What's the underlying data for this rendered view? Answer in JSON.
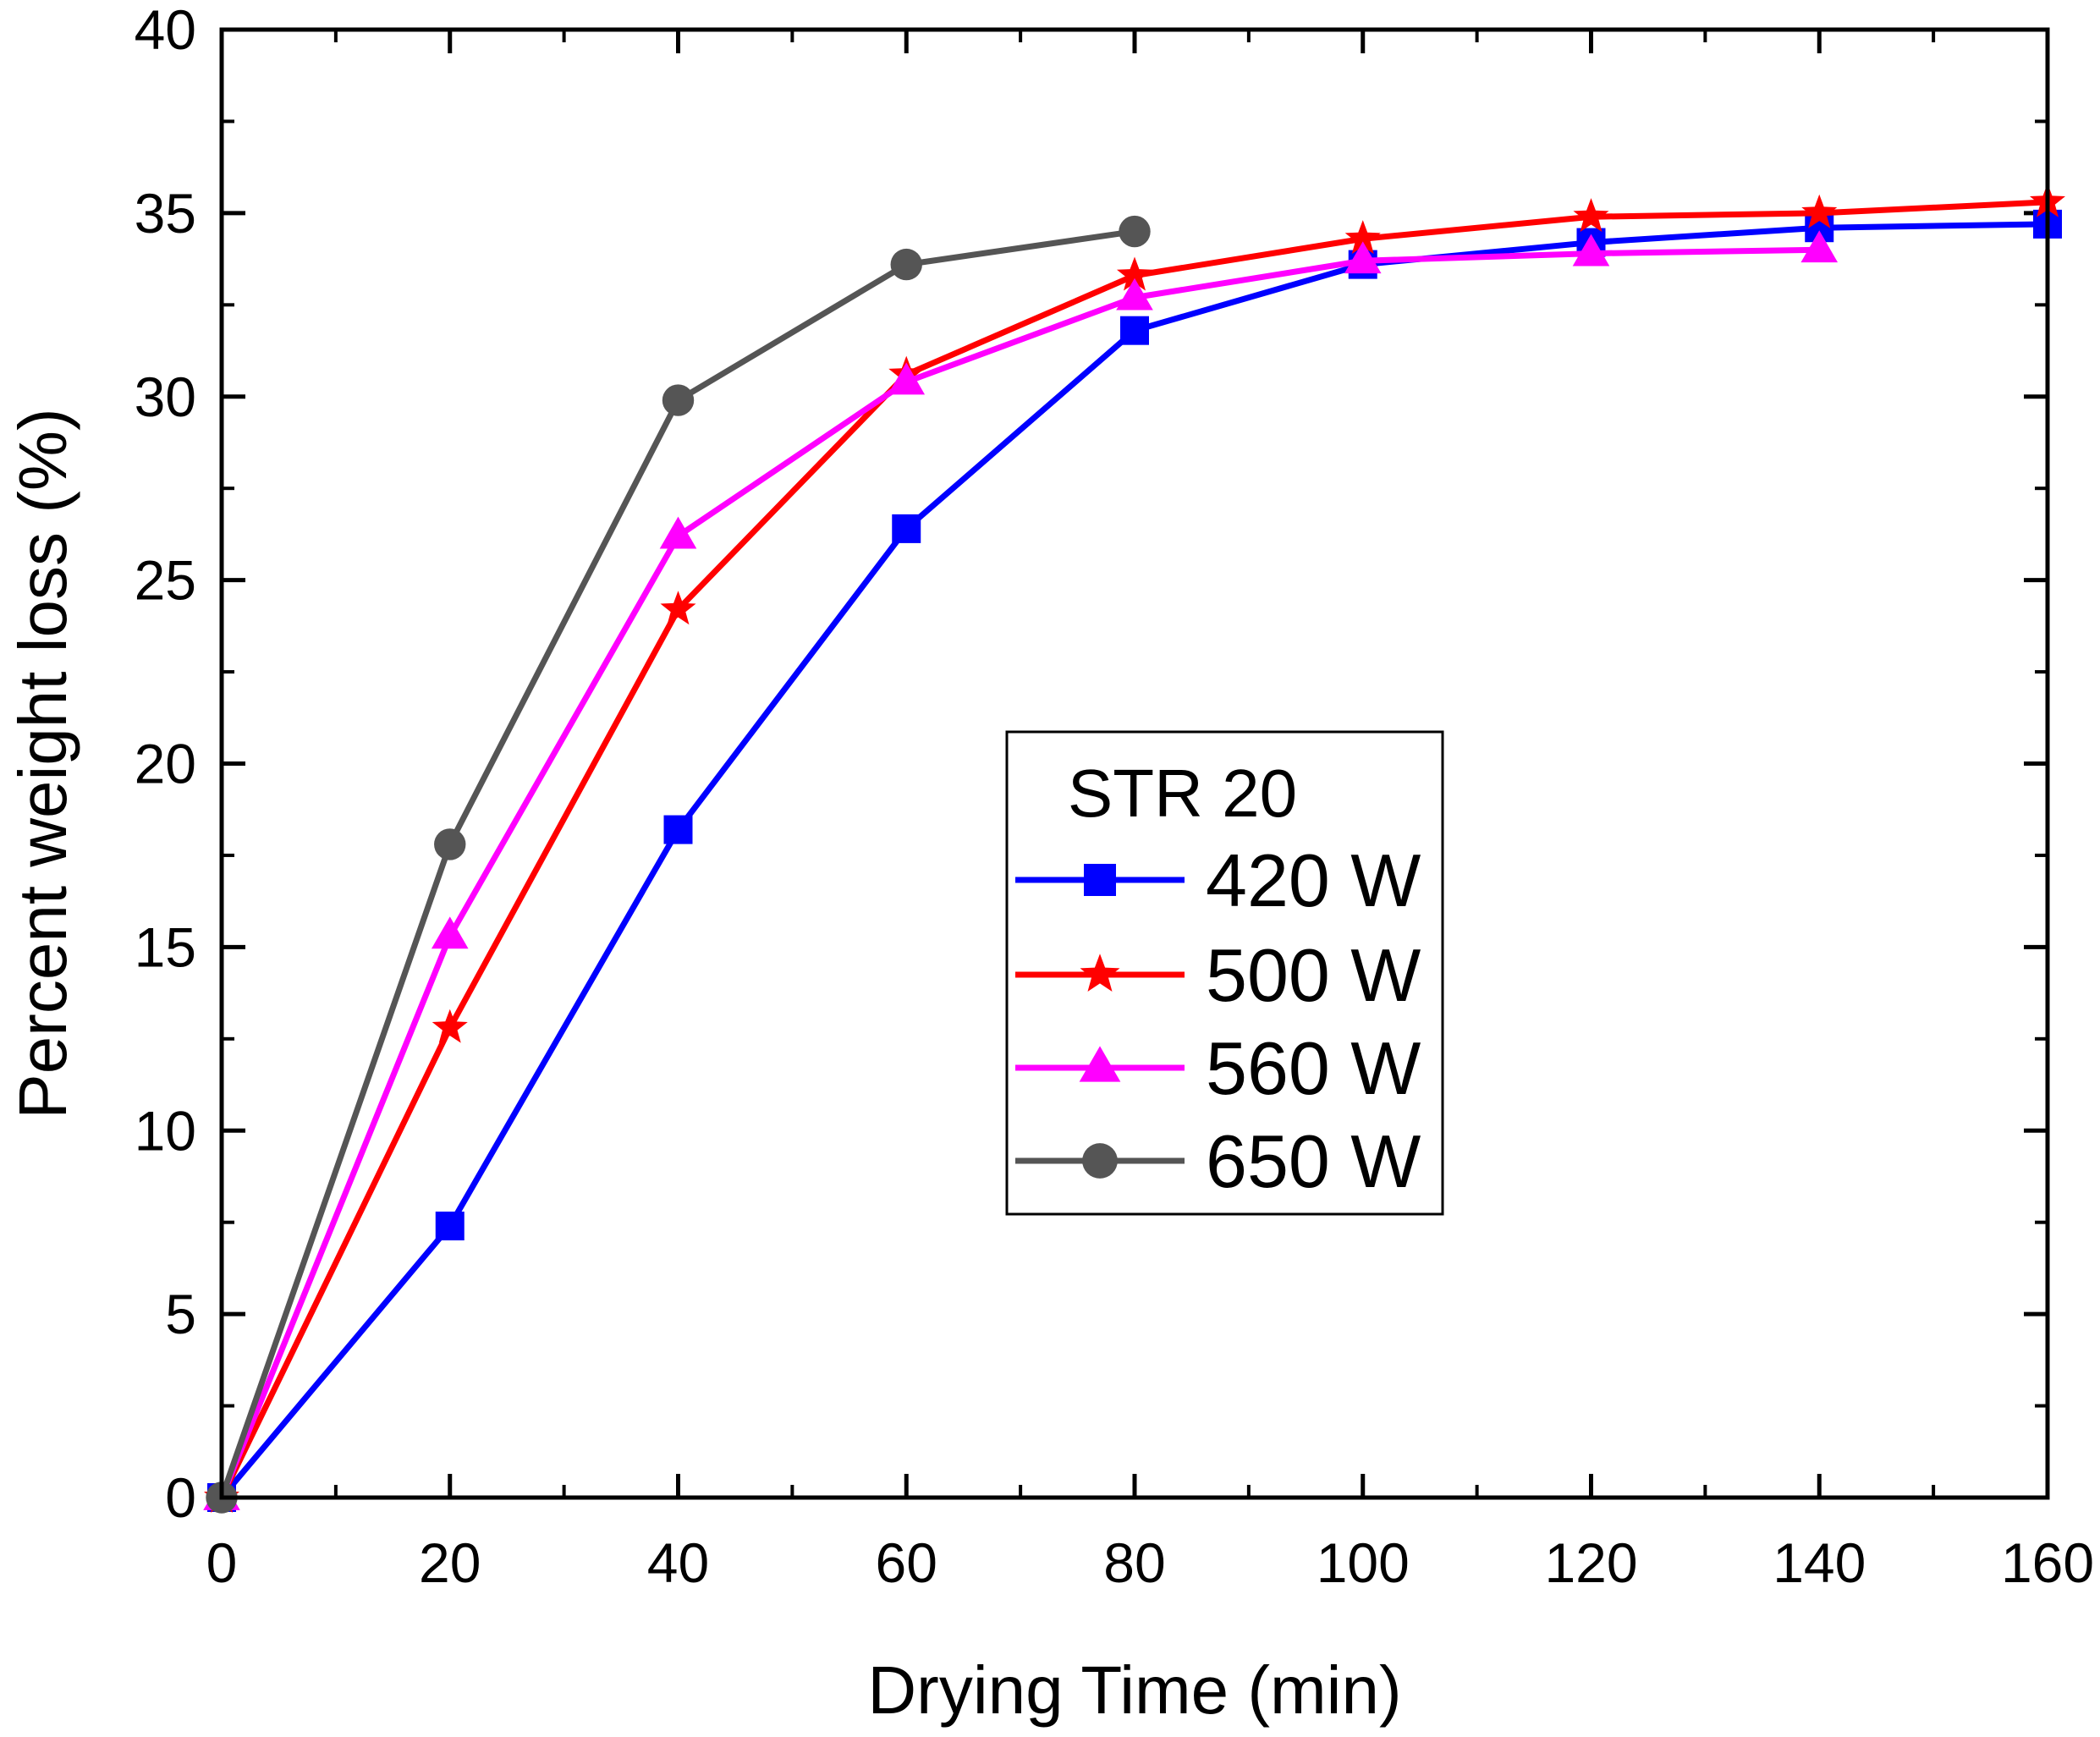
{
  "chart_data": {
    "type": "line",
    "title": "",
    "xlabel": "Drying Time (min)",
    "ylabel": "Percent weight loss (%)",
    "xlim": [
      0,
      160
    ],
    "ylim": [
      0,
      40
    ],
    "xticks": [
      0,
      20,
      40,
      60,
      80,
      100,
      120,
      140,
      160
    ],
    "yticks": [
      0,
      5,
      10,
      15,
      20,
      25,
      30,
      35,
      40
    ],
    "grid": false,
    "legend": {
      "title": "STR 20",
      "position": "center-right"
    },
    "series": [
      {
        "name": "420 W",
        "color": "#0000FF",
        "marker": "square",
        "x": [
          0,
          20,
          40,
          60,
          80,
          100,
          120,
          140,
          160
        ],
        "y": [
          0,
          7.4,
          18.2,
          26.4,
          31.8,
          33.6,
          34.2,
          34.6,
          34.7
        ]
      },
      {
        "name": "500 W",
        "color": "#FF0000",
        "marker": "star",
        "x": [
          0,
          20,
          40,
          60,
          80,
          100,
          120,
          140,
          160
        ],
        "y": [
          0,
          12.8,
          24.2,
          30.6,
          33.3,
          34.3,
          34.9,
          35.0,
          35.3
        ]
      },
      {
        "name": "560 W",
        "color": "#FF00FF",
        "marker": "triangle",
        "x": [
          0,
          20,
          40,
          60,
          80,
          100,
          120,
          140
        ],
        "y": [
          0,
          15.3,
          26.2,
          30.4,
          32.7,
          33.7,
          33.9,
          34.0
        ]
      },
      {
        "name": "650 W",
        "color": "#555555",
        "marker": "circle",
        "x": [
          0,
          20,
          40,
          60,
          80
        ],
        "y": [
          0,
          17.8,
          29.9,
          33.6,
          34.5
        ]
      }
    ]
  }
}
